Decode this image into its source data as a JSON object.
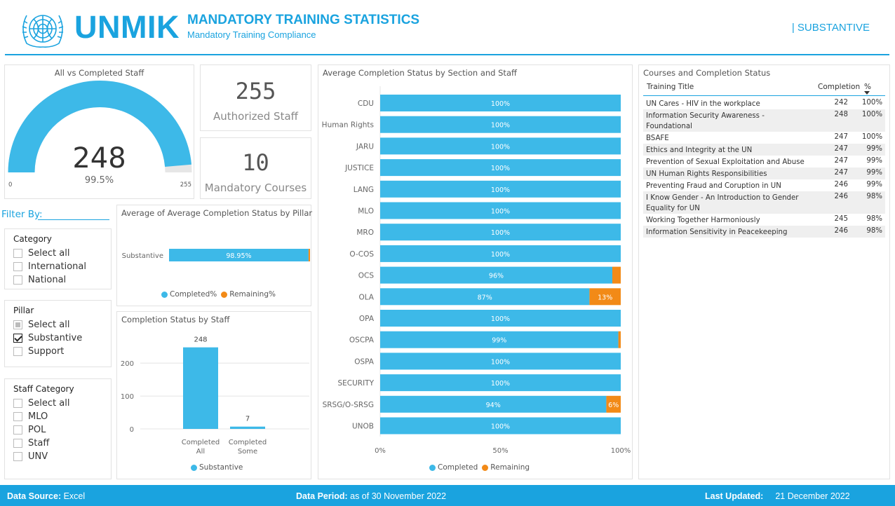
{
  "header": {
    "logo_text": "UNMIK",
    "title": "MANDATORY TRAINING STATISTICS",
    "subtitle": "Mandatory Training Compliance",
    "pillar_tag": "| SUBSTANTIVE"
  },
  "colors": {
    "brand": "#1aa3df",
    "completed": "#3db9e8",
    "remaining": "#f28a17",
    "gauge_track": "#e6e6e6"
  },
  "gauge": {
    "title": "All vs Completed Staff",
    "value": 248,
    "value_label": "248",
    "pct_label": "99.5%",
    "min_label": "0",
    "max_label": "255",
    "max": 255
  },
  "kpis": {
    "authorized_value": "255",
    "authorized_label": "Authorized Staff",
    "courses_value": "10",
    "courses_label": "Mandatory Courses"
  },
  "filters": {
    "label": "Filter By:",
    "category": {
      "title": "Category",
      "items": [
        {
          "label": "Select all",
          "state": "unchecked"
        },
        {
          "label": "International",
          "state": "unchecked"
        },
        {
          "label": "National",
          "state": "unchecked"
        }
      ]
    },
    "pillar": {
      "title": "Pillar",
      "items": [
        {
          "label": "Select all",
          "state": "partial"
        },
        {
          "label": "Substantive",
          "state": "checked"
        },
        {
          "label": "Support",
          "state": "unchecked"
        }
      ]
    },
    "staff_category": {
      "title": "Staff Category",
      "items": [
        {
          "label": "Select all",
          "state": "unchecked"
        },
        {
          "label": "MLO",
          "state": "unchecked"
        },
        {
          "label": "POL",
          "state": "unchecked"
        },
        {
          "label": "Staff",
          "state": "unchecked"
        },
        {
          "label": "UNV",
          "state": "unchecked"
        }
      ]
    }
  },
  "courses_table": {
    "title": "Courses and Completion Status",
    "columns": [
      "Training Title",
      "Completion",
      "%"
    ],
    "rows": [
      {
        "title": "UN Cares - HIV in the workplace",
        "completion": "242",
        "pct": "100%"
      },
      {
        "title": "Information Security Awareness - Foundational",
        "completion": "248",
        "pct": "100%"
      },
      {
        "title": "BSAFE",
        "completion": "247",
        "pct": "100%"
      },
      {
        "title": "Ethics and Integrity at the UN",
        "completion": "247",
        "pct": "99%"
      },
      {
        "title": "Prevention of Sexual Exploitation and Abuse",
        "completion": "247",
        "pct": "99%"
      },
      {
        "title": "UN Human Rights Responsibilities",
        "completion": "247",
        "pct": "99%"
      },
      {
        "title": "Preventing Fraud and Coruption in UN",
        "completion": "246",
        "pct": "99%"
      },
      {
        "title": "I Know Gender - An Introduction to Gender Equality for UN",
        "completion": "246",
        "pct": "98%"
      },
      {
        "title": "Working Together Harmoniously",
        "completion": "245",
        "pct": "98%"
      },
      {
        "title": "Information Sensitivity in Peacekeeping",
        "completion": "246",
        "pct": "98%"
      }
    ]
  },
  "footer": {
    "source_label": "Data Source:",
    "source_value": "Excel",
    "period_label": "Data Period:",
    "period_value": "as of 30 November 2022",
    "updated_label": "Last Updated:",
    "updated_value": "21 December 2022"
  },
  "chart_data": [
    {
      "id": "pillar",
      "type": "bar",
      "orientation": "horizontal-stacked",
      "title": "Average of Average Completion Status by Pillar",
      "categories": [
        "Substantive"
      ],
      "series": [
        {
          "name": "Completed%",
          "values": [
            98.95
          ],
          "labels": [
            "98.95%"
          ]
        },
        {
          "name": "Remaining%",
          "values": [
            1.05
          ],
          "labels": [
            ""
          ]
        }
      ],
      "xlim": [
        0,
        100
      ],
      "legend": "bottom"
    },
    {
      "id": "staff",
      "type": "bar",
      "title": "Completion Status by Staff",
      "categories": [
        "Completed All",
        "Completed Some"
      ],
      "category_lines": [
        [
          "Completed",
          "All"
        ],
        [
          "Completed",
          "Some"
        ]
      ],
      "series": [
        {
          "name": "Substantive",
          "values": [
            248,
            7
          ]
        }
      ],
      "value_labels": [
        "248",
        "7"
      ],
      "yticks": [
        0,
        100,
        200
      ],
      "ylim": [
        0,
        260
      ],
      "legend": "bottom"
    },
    {
      "id": "section",
      "type": "bar",
      "orientation": "horizontal-stacked-100",
      "title": "Average Completion Status by Section and Staff",
      "categories": [
        "CDU",
        "Human Rights",
        "JARU",
        "JUSTICE",
        "LANG",
        "MLO",
        "MRO",
        "O-COS",
        "OCS",
        "OLA",
        "OPA",
        "OSCPA",
        "OSPA",
        "SECURITY",
        "SRSG/O-SRSG",
        "UNOB"
      ],
      "series": [
        {
          "name": "Completed",
          "values": [
            100,
            100,
            100,
            100,
            100,
            100,
            100,
            100,
            96.5,
            87,
            100,
            99,
            100,
            100,
            94,
            100
          ],
          "labels": [
            "100%",
            "100%",
            "100%",
            "100%",
            "100%",
            "100%",
            "100%",
            "100%",
            "96%",
            "87%",
            "100%",
            "99%",
            "100%",
            "100%",
            "94%",
            "100%"
          ]
        },
        {
          "name": "Remaining",
          "values": [
            0,
            0,
            0,
            0,
            0,
            0,
            0,
            0,
            3.5,
            13,
            0,
            1,
            0,
            0,
            6,
            0
          ],
          "labels": [
            "",
            "",
            "",
            "",
            "",
            "",
            "",
            "",
            "",
            "13%",
            "",
            "",
            "",
            "",
            "6%",
            ""
          ]
        }
      ],
      "xticks": [
        "0%",
        "50%",
        "100%"
      ],
      "xlim": [
        0,
        100
      ],
      "legend": "bottom"
    }
  ]
}
